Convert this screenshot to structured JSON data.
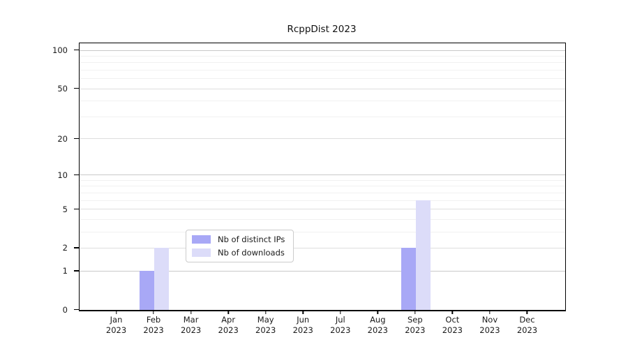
{
  "title": "RcppDist 2023",
  "chart_data": {
    "type": "bar",
    "scale": "log1p",
    "title": "RcppDist 2023",
    "xlabel": "",
    "ylabel": "",
    "ylim": [
      0,
      114
    ],
    "grid": "on",
    "categories": [
      {
        "month": "Jan",
        "year": "2023"
      },
      {
        "month": "Feb",
        "year": "2023"
      },
      {
        "month": "Mar",
        "year": "2023"
      },
      {
        "month": "Apr",
        "year": "2023"
      },
      {
        "month": "May",
        "year": "2023"
      },
      {
        "month": "Jun",
        "year": "2023"
      },
      {
        "month": "Jul",
        "year": "2023"
      },
      {
        "month": "Aug",
        "year": "2023"
      },
      {
        "month": "Sep",
        "year": "2023"
      },
      {
        "month": "Oct",
        "year": "2023"
      },
      {
        "month": "Nov",
        "year": "2023"
      },
      {
        "month": "Dec",
        "year": "2023"
      }
    ],
    "series": [
      {
        "name": "Nb of distinct IPs",
        "color": "#a8a8f6",
        "values": [
          0,
          1,
          0,
          0,
          0,
          0,
          0,
          0,
          2,
          0,
          0,
          0
        ]
      },
      {
        "name": "Nb of downloads",
        "color": "#dcdcf9",
        "values": [
          0,
          2,
          0,
          0,
          0,
          0,
          0,
          0,
          6,
          0,
          0,
          0
        ]
      }
    ],
    "yticks": [
      0,
      1,
      2,
      5,
      10,
      20,
      50,
      100
    ],
    "minor_gridlines": [
      3,
      4,
      6,
      7,
      8,
      9,
      30,
      40,
      60,
      70,
      80,
      90
    ],
    "legend": {
      "position": "bottom-center",
      "entries": [
        "Nb of distinct IPs",
        "Nb of downloads"
      ]
    },
    "colors": {
      "bar_distinct_ips": "#a8a8f6",
      "bar_downloads": "#dcdcf9",
      "grid_decade": "#c9c9c9",
      "grid_labeled": "#dedede",
      "grid_minor": "#f1f1f1",
      "frame": "#000000",
      "text": "#1a1a1a"
    }
  }
}
